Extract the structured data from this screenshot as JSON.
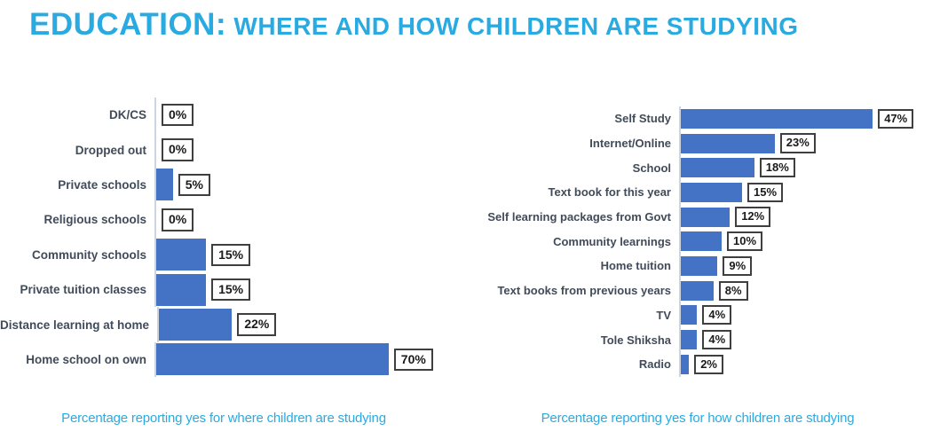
{
  "title": {
    "primary": "EDUCATION:",
    "secondary": " WHERE AND HOW CHILDREN ARE STUDYING"
  },
  "colors": {
    "accent_cyan": "#29ABE2",
    "bar_blue": "#4472C4",
    "category_label": "#414B59"
  },
  "chart_data": [
    {
      "type": "bar",
      "orientation": "horizontal",
      "title": "",
      "caption": "Percentage reporting yes for where children are studying",
      "categories": [
        "DK/CS",
        "Dropped out",
        "Private schools",
        "Religious schools",
        "Community schools",
        "Private tuition classes",
        "Distance learning at home",
        "Home school on own"
      ],
      "values": [
        0,
        0,
        5,
        0,
        15,
        15,
        22,
        70
      ],
      "value_labels": [
        "0%",
        "0%",
        "5%",
        "0%",
        "15%",
        "15%",
        "22%",
        "70%"
      ],
      "xlim": [
        0,
        75
      ],
      "grid": false,
      "legend": "none",
      "data_labels": "outside-end-boxed"
    },
    {
      "type": "bar",
      "orientation": "horizontal",
      "title": "",
      "caption": "Percentage reporting yes for how children are studying",
      "categories": [
        "Self  Study",
        "Internet/Online",
        "School",
        "Text book for this year",
        "Self learning packages from Govt",
        "Community learnings",
        "Home tuition",
        "Text books from previous years",
        "TV",
        "Tole Shiksha",
        "Radio"
      ],
      "values": [
        47,
        23,
        18,
        15,
        12,
        10,
        9,
        8,
        4,
        4,
        2
      ],
      "value_labels": [
        "47%",
        "23%",
        "18%",
        "15%",
        "12%",
        "10%",
        "9%",
        "8%",
        "4%",
        "4%",
        "2%"
      ],
      "xlim": [
        0,
        50
      ],
      "grid": false,
      "legend": "none",
      "data_labels": "outside-end-boxed"
    }
  ]
}
